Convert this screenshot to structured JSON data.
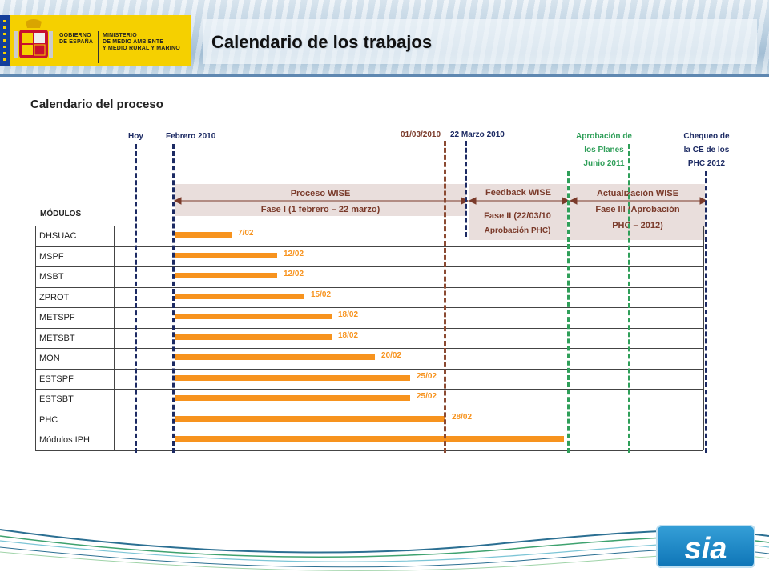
{
  "header": {
    "title": "Calendario de los trabajos",
    "logo": {
      "line1": "GOBIERNO",
      "line2": "DE ESPAÑA",
      "ministry1": "MINISTERIO",
      "ministry2": "DE MEDIO AMBIENTE",
      "ministry3": "Y MEDIO RURAL Y MARINO"
    }
  },
  "subtitle": "Calendario del proceso",
  "milestones": {
    "hoy": "Hoy",
    "febrero": "Febrero 2010",
    "marzo1": "01/03/2010",
    "marzo22": "22 Marzo 2010",
    "aprobacion": [
      "Aprobación de",
      "los Planes",
      "Junio 2011"
    ],
    "chequeo": [
      "Chequeo de",
      "la CE de los",
      "PHC 2012"
    ]
  },
  "phases": {
    "wise": {
      "title": "Proceso WISE",
      "sub": "Fase I (1 febrero – 22 marzo)"
    },
    "feedback": {
      "title": "Feedback WISE",
      "sub1": "Fase II (22/03/10",
      "sub2": "Aprobación PHC)"
    },
    "actualizacion": {
      "title": "Actualización WISE",
      "sub1": "Fase III (Aprobación",
      "sub2": "PHC – 2012)"
    }
  },
  "modules_header": "MÓDULOS",
  "modules": [
    {
      "name": "DHSUAC",
      "date": "7/02",
      "progress": 0.21
    },
    {
      "name": "MSPF",
      "date": "12/02",
      "progress": 0.38
    },
    {
      "name": "MSBT",
      "date": "12/02",
      "progress": 0.38
    },
    {
      "name": "ZPROT",
      "date": "15/02",
      "progress": 0.48
    },
    {
      "name": "METSPF",
      "date": "18/02",
      "progress": 0.58
    },
    {
      "name": "METSBT",
      "date": "18/02",
      "progress": 0.58
    },
    {
      "name": "MON",
      "date": "20/02",
      "progress": 0.74
    },
    {
      "name": "ESTSPF",
      "date": "25/02",
      "progress": 0.87
    },
    {
      "name": "ESTSBT",
      "date": "25/02",
      "progress": 0.87
    },
    {
      "name": "PHC",
      "date": "28/02",
      "progress": 1.0
    },
    {
      "name": "Módulos IPH",
      "date": "",
      "progress": 1.0
    }
  ],
  "colors": {
    "bar": "#f7931e",
    "milestone_blue": "#1c2a63",
    "milestone_brown": "#8b4a32",
    "milestone_green": "#2f9f59",
    "phase_bg": "#e9dedc",
    "brand": "#0d74b6"
  },
  "brand_logo": "sia"
}
